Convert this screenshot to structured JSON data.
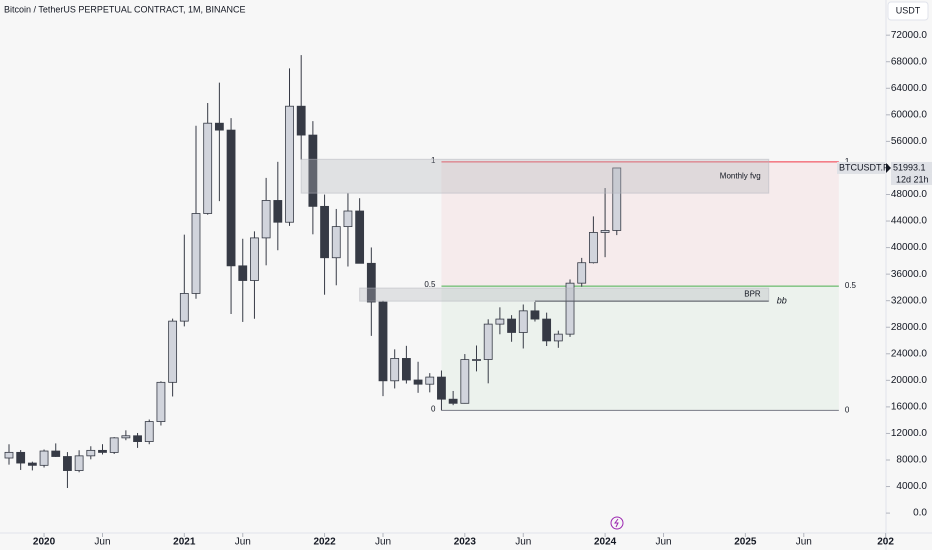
{
  "chart_data": {
    "type": "candlestick",
    "title": "Bitcoin / TetherUS PERPETUAL CONTRACT, 1M, BINANCE",
    "currency": "USDT",
    "x": [
      "2019-10",
      "2019-11",
      "2019-12",
      "2020-01",
      "2020-02",
      "2020-03",
      "2020-04",
      "2020-05",
      "2020-06",
      "2020-07",
      "2020-08",
      "2020-09",
      "2020-10",
      "2020-11",
      "2020-12",
      "2021-01",
      "2021-02",
      "2021-03",
      "2021-04",
      "2021-05",
      "2021-06",
      "2021-07",
      "2021-08",
      "2021-09",
      "2021-10",
      "2021-11",
      "2021-12",
      "2022-01",
      "2022-02",
      "2022-03",
      "2022-04",
      "2022-05",
      "2022-06",
      "2022-07",
      "2022-08",
      "2022-09",
      "2022-10",
      "2022-11",
      "2022-12",
      "2023-01",
      "2023-02",
      "2023-03",
      "2023-04",
      "2023-05",
      "2023-06",
      "2023-07",
      "2023-08",
      "2023-09",
      "2023-10",
      "2023-11",
      "2023-12",
      "2024-01",
      "2024-02"
    ],
    "open": [
      8300,
      9150,
      7540,
      7195,
      9350,
      8525,
      6410,
      8625,
      9450,
      9140,
      11335,
      11650,
      10775,
      13790,
      19700,
      28920,
      33090,
      45135,
      58740,
      57700,
      37250,
      35040,
      41460,
      47100,
      43820,
      61300,
      56950,
      46210,
      38470,
      43160,
      45510,
      37630,
      31800,
      19930,
      23300,
      20050,
      19420,
      20490,
      17160,
      16540,
      23125,
      23140,
      28470,
      29230,
      27210,
      30470,
      29230,
      25940,
      26960,
      34640,
      37720,
      42280,
      42580
    ],
    "high": [
      10370,
      9500,
      7750,
      9580,
      10500,
      9190,
      9470,
      10070,
      10380,
      11450,
      12470,
      12070,
      14100,
      19860,
      29300,
      41950,
      58350,
      61780,
      64850,
      59500,
      41330,
      42450,
      50500,
      52920,
      67000,
      69000,
      59050,
      47990,
      45820,
      48190,
      47440,
      40020,
      31990,
      24670,
      25200,
      22800,
      21085,
      21480,
      18400,
      23960,
      25250,
      29200,
      31000,
      29820,
      31430,
      31800,
      30200,
      27480,
      35200,
      38450,
      44700,
      48970,
      52000
    ],
    "low": [
      7300,
      6500,
      6430,
      6870,
      8450,
      3780,
      6150,
      8100,
      8830,
      8900,
      10980,
      9825,
      10375,
      13200,
      17570,
      28130,
      32300,
      44950,
      47000,
      30000,
      28800,
      29280,
      37330,
      39600,
      43280,
      53250,
      42000,
      32900,
      34320,
      37150,
      37700,
      26700,
      17620,
      18780,
      19520,
      18120,
      18190,
      15480,
      16260,
      16500,
      21350,
      19550,
      26940,
      25810,
      24800,
      28860,
      25170,
      24900,
      26540,
      34100,
      37600,
      38555,
      41880
    ],
    "close": [
      9150,
      7540,
      7195,
      9350,
      8525,
      6410,
      8625,
      9450,
      9140,
      11335,
      11650,
      10775,
      13790,
      19700,
      28920,
      33090,
      45135,
      58740,
      57700,
      37250,
      35040,
      41460,
      47100,
      43820,
      61300,
      56950,
      46210,
      38470,
      43160,
      45510,
      37630,
      31800,
      19930,
      23300,
      20050,
      19420,
      20490,
      17160,
      16540,
      23125,
      23140,
      28470,
      29230,
      27210,
      30470,
      29230,
      25940,
      26960,
      34640,
      37720,
      42280,
      42580,
      51993.1
    ],
    "up_color": "#d1d4dc",
    "down_color": "#363a45",
    "xlim": [
      "2019-09",
      "2026-01"
    ],
    "xticks": [
      {
        "value": "2020-01",
        "label": "2020"
      },
      {
        "value": "2020-06",
        "label": "Jun"
      },
      {
        "value": "2021-01",
        "label": "2021"
      },
      {
        "value": "2021-06",
        "label": "Jun"
      },
      {
        "value": "2022-01",
        "label": "2022"
      },
      {
        "value": "2022-06",
        "label": "Jun"
      },
      {
        "value": "2023-01",
        "label": "2023"
      },
      {
        "value": "2023-06",
        "label": "Jun"
      },
      {
        "value": "2024-01",
        "label": "2024"
      },
      {
        "value": "2024-06",
        "label": "Jun"
      },
      {
        "value": "2025-01",
        "label": "2025"
      },
      {
        "value": "2025-06",
        "label": "Jun"
      },
      {
        "value": "2026-01",
        "label": "202"
      }
    ],
    "ylim": [
      -3300,
      77300
    ],
    "yticks": [
      {
        "value": 0,
        "label": "0.0"
      },
      {
        "value": 4000,
        "label": "4000.0"
      },
      {
        "value": 8000,
        "label": "8000.0"
      },
      {
        "value": 12000,
        "label": "12000.0"
      },
      {
        "value": 16000,
        "label": "16000.0"
      },
      {
        "value": 20000,
        "label": "20000.0"
      },
      {
        "value": 24000,
        "label": "24000.0"
      },
      {
        "value": 28000,
        "label": "28000.0"
      },
      {
        "value": 32000,
        "label": "32000.0"
      },
      {
        "value": 36000,
        "label": "36000.0"
      },
      {
        "value": 40000,
        "label": "40000.0"
      },
      {
        "value": 44000,
        "label": "44000.0"
      },
      {
        "value": 48000,
        "label": "48000.0"
      },
      {
        "value": 52000,
        "label": "52000.0"
      },
      {
        "value": 56000,
        "label": "56000.0"
      },
      {
        "value": 60000,
        "label": "60000.0"
      },
      {
        "value": 64000,
        "label": "64000.0"
      },
      {
        "value": 68000,
        "label": "68000.0"
      },
      {
        "value": 72000,
        "label": "72000.0"
      }
    ],
    "fib": {
      "from": "2022-11",
      "to": "2025-09",
      "levels": [
        1,
        0.5,
        0
      ],
      "prices": [
        52920,
        34200,
        15480
      ],
      "colors": [
        "#f23645",
        "#4caf50",
        "#787b86"
      ]
    },
    "zones": [
      {
        "label": "Monthly fvg",
        "from": "2021-11",
        "to": "2025-03",
        "top": 53300,
        "bottom": 48200
      },
      {
        "label": "BPR",
        "from": "2022-04",
        "to": "2025-03",
        "top": 33900,
        "bottom": 31930
      }
    ],
    "level_line": {
      "label": "bb",
      "from": "2023-07",
      "to": "2025-03",
      "price": 31930
    },
    "last": {
      "symbol": "BTCUSDT.P",
      "value": 51993.1,
      "countdown": "12d 21h"
    }
  }
}
